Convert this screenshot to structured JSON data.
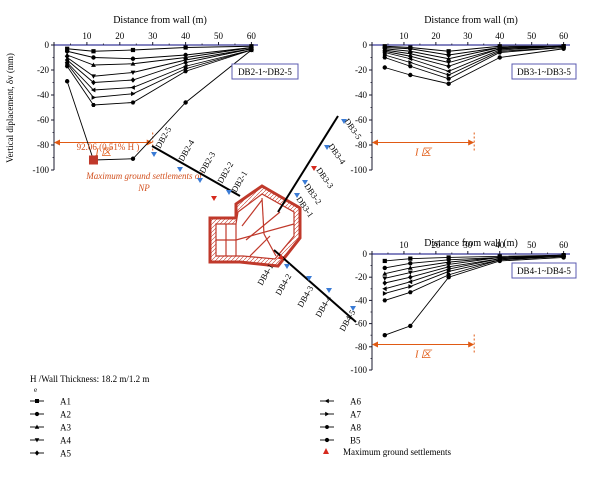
{
  "colors": {
    "axis": "#1a1a2e",
    "zero_line": "#3b3b9a",
    "zone": "#e05a14",
    "label_red": "#d2501e",
    "sensor_blue": "#3a7bd5",
    "sensor_red": "#d62a1e",
    "frame": "#c0392b"
  },
  "chart_data": [
    {
      "type": "line",
      "id": "db2",
      "title": "Distance from wall (m)",
      "ylabel": "Vertical diplacement, δv (mm)",
      "xlim": [
        0,
        62
      ],
      "ylim": [
        -100,
        0
      ],
      "xticks": [
        0,
        10,
        20,
        30,
        40,
        50,
        60
      ],
      "yticks": [
        0,
        -20,
        -40,
        -60,
        -80,
        -100
      ],
      "series_label": "DB2-1~DB2-5",
      "x": [
        4,
        12,
        24,
        40,
        60
      ],
      "series": [
        {
          "name": "A1",
          "marker": "square",
          "values": [
            -3,
            -5,
            -4,
            -2,
            -1
          ]
        },
        {
          "name": "A2",
          "marker": "circle",
          "values": [
            -5,
            -10,
            -11,
            -8,
            -2
          ]
        },
        {
          "name": "A3",
          "marker": "triangle-up",
          "values": [
            -8,
            -16,
            -15,
            -10,
            -2
          ]
        },
        {
          "name": "A4",
          "marker": "triangle-down",
          "values": [
            -10,
            -25,
            -22,
            -12,
            -3
          ]
        },
        {
          "name": "A5",
          "marker": "diamond",
          "values": [
            -12,
            -30,
            -28,
            -14,
            -3
          ]
        },
        {
          "name": "A6",
          "marker": "triangle-left",
          "values": [
            -14,
            -36,
            -34,
            -17,
            -4
          ]
        },
        {
          "name": "A7",
          "marker": "triangle-right",
          "values": [
            -15,
            -42,
            -39,
            -19,
            -4
          ]
        },
        {
          "name": "A8",
          "marker": "hexagon",
          "values": [
            -17,
            -48,
            -46,
            -21,
            -4
          ]
        },
        {
          "name": "B5",
          "marker": "circle",
          "values": [
            -29,
            -92,
            -91,
            -46,
            -4
          ]
        }
      ],
      "zone_label": "I 区",
      "zone_x": [
        0,
        30
      ],
      "annotation_value": "92.06 (0.51% H )",
      "annotation_point": [
        12,
        -92
      ],
      "caption": [
        "Maximum ground settlements of",
        "NP"
      ]
    },
    {
      "type": "line",
      "id": "db3",
      "title": "Distance from wall (m)",
      "xlim": [
        0,
        62
      ],
      "ylim": [
        -100,
        0
      ],
      "xticks": [
        0,
        10,
        20,
        30,
        40,
        50,
        60
      ],
      "yticks": [
        0,
        -20,
        -40,
        -60,
        -80,
        -100
      ],
      "series_label": "DB3-1~DB3-5",
      "x": [
        4,
        12,
        24,
        40,
        60
      ],
      "series": [
        {
          "name": "A1",
          "marker": "square",
          "values": [
            -1,
            -2,
            -5,
            -1,
            -1
          ]
        },
        {
          "name": "A2",
          "marker": "circle",
          "values": [
            -2,
            -3,
            -8,
            -2,
            -1
          ]
        },
        {
          "name": "A3",
          "marker": "triangle-up",
          "values": [
            -3,
            -5,
            -11,
            -2,
            -1
          ]
        },
        {
          "name": "A4",
          "marker": "triangle-down",
          "values": [
            -4,
            -7,
            -14,
            -3,
            -1
          ]
        },
        {
          "name": "A5",
          "marker": "diamond",
          "values": [
            -5,
            -9,
            -17,
            -3,
            -1
          ]
        },
        {
          "name": "A6",
          "marker": "triangle-left",
          "values": [
            -6,
            -11,
            -21,
            -4,
            -1
          ]
        },
        {
          "name": "A7",
          "marker": "triangle-right",
          "values": [
            -8,
            -14,
            -24,
            -5,
            -2
          ]
        },
        {
          "name": "A8",
          "marker": "hexagon",
          "values": [
            -10,
            -17,
            -27,
            -6,
            -2
          ]
        },
        {
          "name": "B5",
          "marker": "circle",
          "values": [
            -18,
            -24,
            -31,
            -10,
            -3
          ]
        }
      ],
      "zone_label": "I 区",
      "zone_x": [
        0,
        32
      ]
    },
    {
      "type": "line",
      "id": "db4",
      "title": "Distance from wall (m)",
      "xlim": [
        0,
        62
      ],
      "ylim": [
        -100,
        0
      ],
      "xticks": [
        0,
        10,
        20,
        30,
        40,
        50,
        60
      ],
      "yticks": [
        0,
        -20,
        -40,
        -60,
        -80,
        -100
      ],
      "series_label": "DB4-1~DB4-5",
      "x": [
        4,
        12,
        24,
        40,
        60
      ],
      "series": [
        {
          "name": "A1",
          "marker": "square",
          "values": [
            -6,
            -4,
            -3,
            -2,
            -1
          ]
        },
        {
          "name": "A2",
          "marker": "circle",
          "values": [
            -12,
            -8,
            -5,
            -3,
            -1
          ]
        },
        {
          "name": "A3",
          "marker": "triangle-up",
          "values": [
            -17,
            -12,
            -7,
            -3,
            -1
          ]
        },
        {
          "name": "A4",
          "marker": "triangle-down",
          "values": [
            -21,
            -16,
            -9,
            -3,
            -2
          ]
        },
        {
          "name": "A5",
          "marker": "diamond",
          "values": [
            -25,
            -20,
            -11,
            -4,
            -2
          ]
        },
        {
          "name": "A6",
          "marker": "triangle-left",
          "values": [
            -30,
            -24,
            -13,
            -4,
            -2
          ]
        },
        {
          "name": "A7",
          "marker": "triangle-right",
          "values": [
            -34,
            -28,
            -15,
            -5,
            -2
          ]
        },
        {
          "name": "A8",
          "marker": "hexagon",
          "values": [
            -40,
            -33,
            -18,
            -5,
            -2
          ]
        },
        {
          "name": "B5",
          "marker": "circle",
          "values": [
            -70,
            -62,
            -20,
            -6,
            -3
          ]
        }
      ],
      "zone_label": "I 区",
      "zone_x": [
        0,
        32
      ]
    }
  ],
  "plan": {
    "db2_labels": [
      "DB2-5",
      "DB2-4",
      "DB2-3",
      "DB2-2",
      "DB2-1"
    ],
    "db3_labels": [
      "DB3-5",
      "DB3-4",
      "DB3-3",
      "DB3-2",
      "DB3-1"
    ],
    "db4_labels": [
      "DB4-1",
      "DB4-2",
      "DB4-3",
      "DB4-4",
      "DB4-5"
    ]
  },
  "legend": {
    "header": "H /Wall Thickness: 18.2 m/1.2 m",
    "header_sub": "e",
    "left": [
      {
        "label": "A1",
        "marker": "square"
      },
      {
        "label": "A2",
        "marker": "circle"
      },
      {
        "label": "A3",
        "marker": "triangle-up"
      },
      {
        "label": "A4",
        "marker": "triangle-down"
      },
      {
        "label": "A5",
        "marker": "diamond"
      }
    ],
    "right": [
      {
        "label": "A6",
        "marker": "triangle-left"
      },
      {
        "label": "A7",
        "marker": "triangle-right"
      },
      {
        "label": "A8",
        "marker": "hexagon"
      },
      {
        "label": "B5",
        "marker": "circle"
      }
    ],
    "max_label": "Maximum ground settlements"
  }
}
